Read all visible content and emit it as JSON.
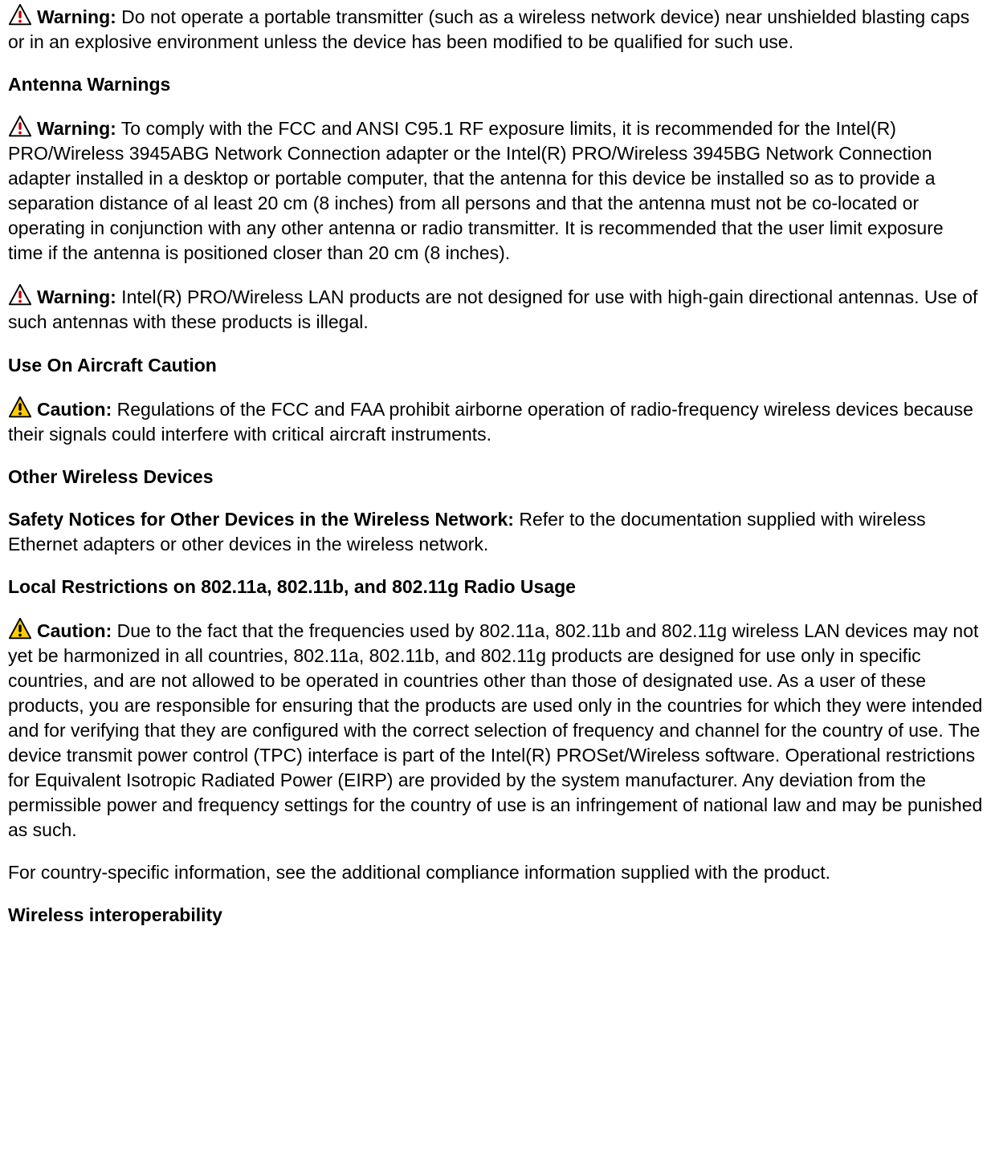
{
  "icons": {
    "warning_red": {
      "border": "#000000",
      "fill": "#ffffff",
      "mark": "#cc0000",
      "size": 30
    },
    "caution_yellow": {
      "border": "#000000",
      "fill": "#ffcc00",
      "mark": "#000000",
      "size": 30
    }
  },
  "blocks": [
    {
      "type": "icon-para",
      "icon": "warning_red",
      "label": "Warning:",
      "text": " Do not operate a portable transmitter (such as a wireless network device) near unshielded blasting caps or in an explosive environment unless the device has been modified to be qualified for such use."
    },
    {
      "type": "heading",
      "text": "Antenna Warnings"
    },
    {
      "type": "icon-para",
      "icon": "warning_red",
      "label": "Warning:",
      "text": " To comply with the FCC and ANSI C95.1 RF exposure limits, it is recommended for the Intel(R) PRO/Wireless 3945ABG Network Connection adapter or the Intel(R) PRO/Wireless 3945BG Network Connection adapter installed in a desktop or portable computer, that the antenna for this device be installed so as to provide a separation distance of al least 20 cm (8 inches) from all persons and that the antenna must not be co-located or operating in conjunction with any other antenna or radio transmitter. It is recommended that the user limit exposure time if the antenna is positioned closer than 20 cm (8 inches)."
    },
    {
      "type": "icon-para",
      "icon": "warning_red",
      "label": "Warning:",
      "text": " Intel(R) PRO/Wireless LAN products are not designed for use with high-gain directional antennas. Use of such antennas with these products is illegal."
    },
    {
      "type": "heading",
      "text": "Use On Aircraft Caution"
    },
    {
      "type": "icon-para",
      "icon": "caution_yellow",
      "label": "Caution:",
      "text": " Regulations of the FCC and FAA prohibit airborne operation of radio-frequency wireless devices because their signals could interfere with critical aircraft instruments."
    },
    {
      "type": "heading",
      "text": "Other Wireless Devices"
    },
    {
      "type": "lead-para",
      "label": "Safety Notices for Other Devices in the Wireless Network:",
      "text": " Refer to the documentation supplied with wireless Ethernet adapters or other devices in the wireless network."
    },
    {
      "type": "heading",
      "text": "Local Restrictions on 802.11a, 802.11b, and 802.11g Radio Usage"
    },
    {
      "type": "icon-para",
      "icon": "caution_yellow",
      "label": "Caution:",
      "text": " Due to the fact that the frequencies used by 802.11a, 802.11b and 802.11g wireless LAN devices may not yet be harmonized in all countries, 802.11a, 802.11b, and 802.11g products are designed for use only in specific countries, and are not allowed to be operated in countries other than those of designated use. As a user of these products, you are responsible for ensuring that the products are used only in the countries for which they were intended and for verifying that they are configured with the correct selection of frequency and channel for the country of use. The device transmit power control (TPC) interface is part of the Intel(R) PROSet/Wireless software. Operational restrictions for Equivalent Isotropic Radiated Power (EIRP) are provided by the system manufacturer. Any deviation from the permissible power and frequency settings for the country of use is an infringement of national law and may be punished as such."
    },
    {
      "type": "para",
      "text": "For country-specific information, see the additional compliance information supplied with the product."
    },
    {
      "type": "heading",
      "text": "Wireless interoperability"
    }
  ]
}
